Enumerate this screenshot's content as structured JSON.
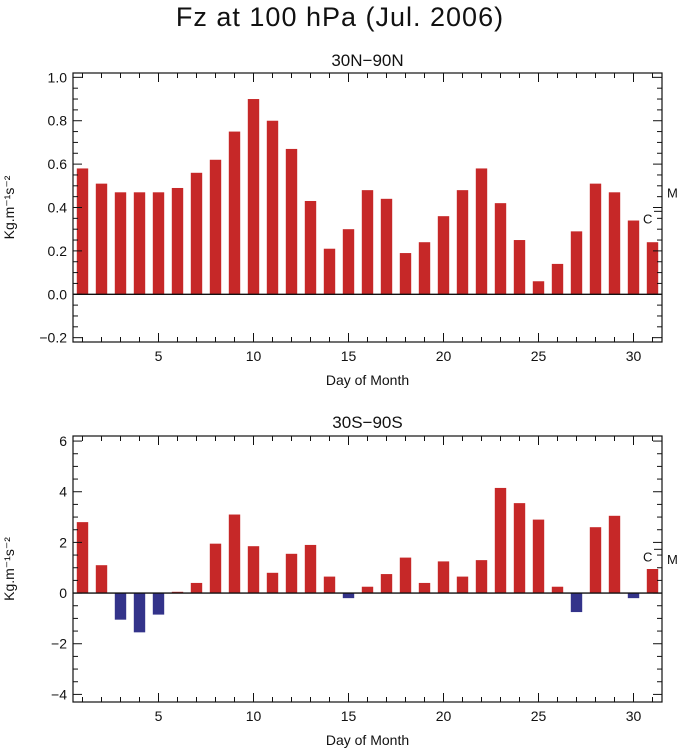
{
  "title": "Fz at 100 hPa (Jul. 2006)",
  "colors": {
    "positive": "#c62828",
    "negative": "#33338a",
    "axis": "#111111"
  },
  "chart_data": [
    {
      "type": "bar",
      "title": "30N−90N",
      "xlabel": "Day of Month",
      "ylabel": "Kg.m⁻¹s⁻²",
      "xlim": [
        0.5,
        31.5
      ],
      "ylim": [
        -0.22,
        1.02
      ],
      "xticks": [
        5,
        10,
        15,
        20,
        25,
        30
      ],
      "yticks": [
        -0.2,
        0.0,
        0.2,
        0.4,
        0.6,
        0.8,
        1.0
      ],
      "ytick_labels": [
        "−0.2",
        "0.0",
        "0.2",
        "0.4",
        "0.6",
        "0.8",
        "1.0"
      ],
      "zero_line": true,
      "marker_C": {
        "label": "C",
        "value": 0.35
      },
      "marker_M": {
        "label": "M",
        "value": 0.47
      },
      "x": [
        1,
        2,
        3,
        4,
        5,
        6,
        7,
        8,
        9,
        10,
        11,
        12,
        13,
        14,
        15,
        16,
        17,
        18,
        19,
        20,
        21,
        22,
        23,
        24,
        25,
        26,
        27,
        28,
        29,
        30,
        31
      ],
      "values": [
        0.58,
        0.51,
        0.47,
        0.47,
        0.47,
        0.49,
        0.56,
        0.62,
        0.75,
        0.9,
        0.8,
        0.67,
        0.43,
        0.21,
        0.3,
        0.48,
        0.44,
        0.19,
        0.24,
        0.36,
        0.48,
        0.58,
        0.42,
        0.25,
        0.06,
        0.14,
        0.29,
        0.51,
        0.47,
        0.34,
        0.24
      ]
    },
    {
      "type": "bar",
      "title": "30S−90S",
      "xlabel": "Day of Month",
      "ylabel": "Kg.m⁻¹s⁻²",
      "xlim": [
        0.5,
        31.5
      ],
      "ylim": [
        -4.3,
        6.2
      ],
      "xticks": [
        5,
        10,
        15,
        20,
        25,
        30
      ],
      "yticks": [
        -4,
        -2,
        0,
        2,
        4,
        6
      ],
      "ytick_labels": [
        "−4",
        "−2",
        "0",
        "2",
        "4",
        "6"
      ],
      "zero_line": true,
      "marker_C": {
        "label": "C",
        "value": 1.45
      },
      "marker_M": {
        "label": "M",
        "value": 1.35
      },
      "x": [
        1,
        2,
        3,
        4,
        5,
        6,
        7,
        8,
        9,
        10,
        11,
        12,
        13,
        14,
        15,
        16,
        17,
        18,
        19,
        20,
        21,
        22,
        23,
        24,
        25,
        26,
        27,
        28,
        29,
        30,
        31
      ],
      "values": [
        2.8,
        1.1,
        -1.05,
        -1.55,
        -0.85,
        0.05,
        0.4,
        1.95,
        3.1,
        1.85,
        0.8,
        1.55,
        1.9,
        0.65,
        -0.2,
        0.25,
        0.75,
        1.4,
        0.4,
        1.25,
        0.65,
        1.3,
        4.15,
        3.55,
        2.9,
        0.25,
        -0.75,
        2.6,
        3.05,
        -0.2,
        0.95
      ]
    }
  ]
}
